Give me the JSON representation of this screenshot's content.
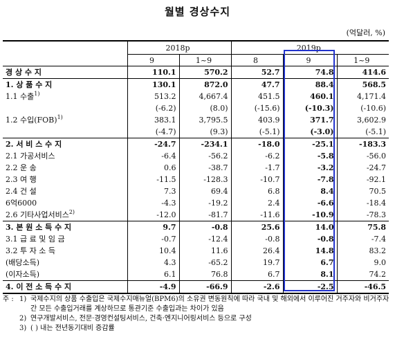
{
  "title": "월별 경상수지",
  "unit": "(억달러, %)",
  "header": {
    "period_2018": "2018p",
    "period_2019": "2019p",
    "cols": [
      "9",
      "1~9",
      "8",
      "9",
      "1~9"
    ]
  },
  "rows": [
    {
      "label": "경 상 수 지",
      "vals": [
        "110.1",
        "570.2",
        "52.7",
        "74.8",
        "414.6"
      ]
    },
    {
      "label": "1. 상 품 수 지",
      "vals": [
        "130.1",
        "872.0",
        "47.7",
        "88.4",
        "568.5"
      ]
    },
    {
      "label": "1.1 수출",
      "sup": "1)",
      "vals": [
        "513.2",
        "4,667.4",
        "451.5",
        "460.1",
        "4,171.4"
      ]
    },
    {
      "label": "",
      "vals": [
        "(-6.2)",
        "(8.0)",
        "(-15.6)",
        "(-10.3)",
        "(-10.6)"
      ]
    },
    {
      "label": "1.2 수입(FOB)",
      "sup": "1)",
      "vals": [
        "383.1",
        "3,795.5",
        "403.9",
        "371.7",
        "3,602.9"
      ]
    },
    {
      "label": "",
      "vals": [
        "(-4.7)",
        "(9.3)",
        "(-5.1)",
        "(-3.0)",
        "(-5.1)"
      ]
    },
    {
      "label": "2. 서 비 스 수 지",
      "vals": [
        "-24.7",
        "-234.1",
        "-18.0",
        "-25.1",
        "-183.3"
      ]
    },
    {
      "label": "2.1 가공서비스",
      "vals": [
        "-6.4",
        "-56.2",
        "-6.2",
        "-5.8",
        "-56.0"
      ]
    },
    {
      "label": "2.2 운 송",
      "vals": [
        "0.6",
        "-38.7",
        "-1.7",
        "-3.2",
        "-24.7"
      ]
    },
    {
      "label": "2.3 여 행",
      "vals": [
        "-11.5",
        "-128.3",
        "-10.7",
        "-7.8",
        "-92.1"
      ]
    },
    {
      "label": "2.4 건 설",
      "vals": [
        "7.3",
        "69.4",
        "6.8",
        "8.4",
        "70.5"
      ]
    },
    {
      "label": "6억6000",
      "vals": [
        "-4.3",
        "-19.2",
        "2.4",
        "-6.6",
        "-18.4"
      ]
    },
    {
      "label": "2.6 기타사업서비스",
      "sup": "2)",
      "vals": [
        "-12.0",
        "-81.7",
        "-11.6",
        "-10.9",
        "-78.3"
      ]
    },
    {
      "label": "3. 본 원 소 득 수 지",
      "vals": [
        "9.7",
        "-0.8",
        "25.6",
        "14.0",
        "75.8"
      ]
    },
    {
      "label": "3.1 급 료 및 임 금",
      "vals": [
        "-0.7",
        "-12.4",
        "-0.8",
        "-0.8",
        "-7.4"
      ]
    },
    {
      "label": "3.2 투 자 소 득",
      "vals": [
        "10.4",
        "11.6",
        "26.4",
        "14.8",
        "83.2"
      ]
    },
    {
      "label": "(배당소득)",
      "vals": [
        "4.3",
        "-65.2",
        "19.7",
        "6.7",
        "9.0"
      ]
    },
    {
      "label": "(이자소득)",
      "vals": [
        "6.1",
        "76.8",
        "6.7",
        "8.1",
        "74.2"
      ]
    },
    {
      "label": "4. 이 전 소 득 수 지",
      "vals": [
        "-4.9",
        "-66.9",
        "-2.6",
        "-2.5",
        "-46.5"
      ]
    }
  ],
  "notes": {
    "lead": "주 :",
    "items": [
      {
        "num": "1)",
        "text": "국제수지의 상품 수출입은 국제수지매뉴얼(BPM6)의 소유권 변동원칙에 따라 국내 및 해외에서 이루어진 거주자와 비거주자 간 모든 수출입거래를 계상하므로 통관기준 수출입과는 차이가 있음"
      },
      {
        "num": "2)",
        "text": "연구개발서비스, 전문·경영컨설팅서비스, 건축·엔지니어링서비스 등으로 구성"
      },
      {
        "num": "3)",
        "text": "(  ) 내는 전년동기대비 증감률"
      }
    ]
  }
}
